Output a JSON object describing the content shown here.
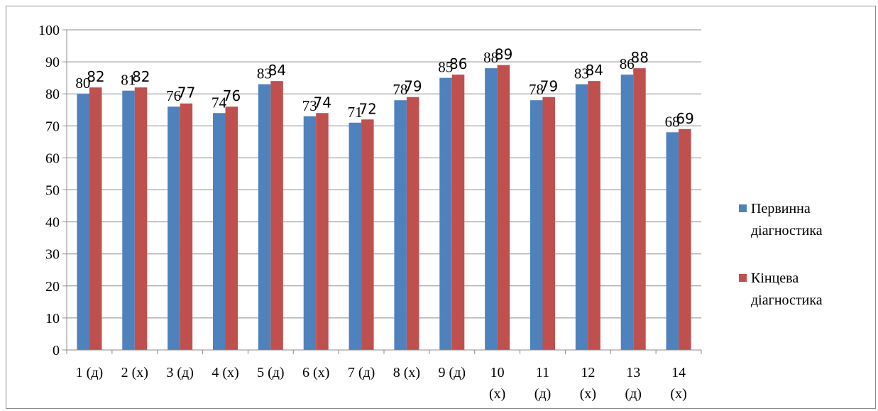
{
  "chart_data": {
    "type": "bar",
    "categories": [
      [
        "1 (д)"
      ],
      [
        "2 (х)"
      ],
      [
        "3 (д)"
      ],
      [
        "4 (х)"
      ],
      [
        "5 (д)"
      ],
      [
        "6 (х)"
      ],
      [
        "7 (д)"
      ],
      [
        "8 (х)"
      ],
      [
        "9 (д)"
      ],
      [
        "10",
        "(х)"
      ],
      [
        "11",
        "(д)"
      ],
      [
        "12",
        "(х)"
      ],
      [
        "13",
        "(д)"
      ],
      [
        "14",
        "(х)"
      ]
    ],
    "series": [
      {
        "name_lines": [
          "Первинна",
          "діагностика"
        ],
        "color": "#4F81BD",
        "values": [
          80,
          81,
          76,
          74,
          83,
          73,
          71,
          78,
          85,
          88,
          78,
          83,
          86,
          68
        ]
      },
      {
        "name_lines": [
          "Кінцева",
          "діагностика"
        ],
        "color": "#C0504D",
        "values": [
          82,
          82,
          77,
          76,
          84,
          74,
          72,
          79,
          86,
          89,
          79,
          84,
          88,
          69
        ]
      }
    ],
    "ylim": [
      0,
      100
    ],
    "yticks": [
      "0",
      "10",
      "20",
      "30",
      "40",
      "50",
      "60",
      "70",
      "80",
      "90",
      "100"
    ],
    "grid": true,
    "legend": "right",
    "data_labels": true
  }
}
